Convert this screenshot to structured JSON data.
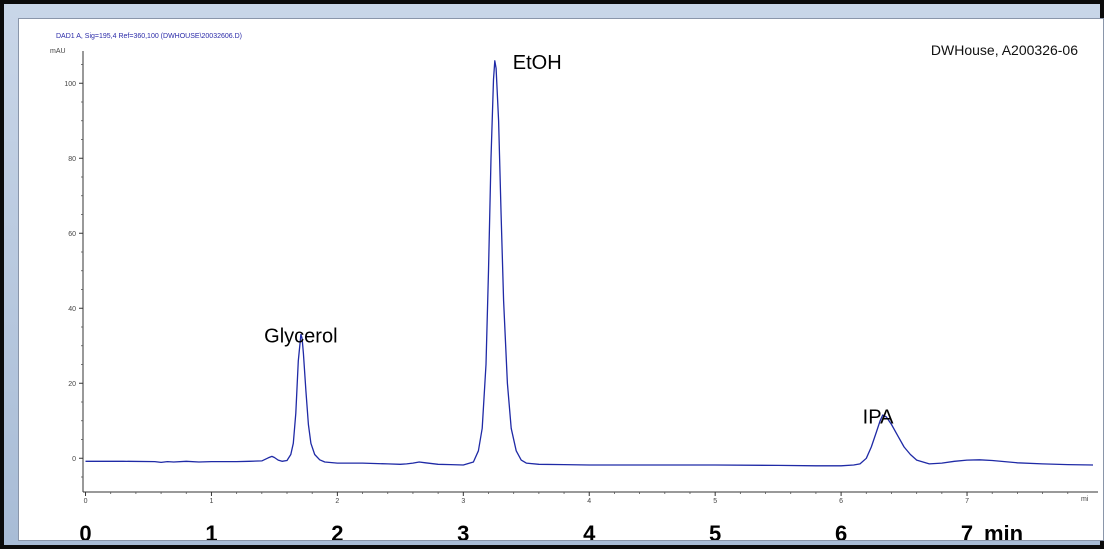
{
  "header": {
    "signal": "DAD1 A, Sig=195,4 Ref=360,100 (DWHOUSE\\20032606.D)",
    "sample_id": "DWHouse, A200326-06"
  },
  "chart_data": {
    "type": "line",
    "title": "",
    "ylabel": "mAU",
    "xlabel": "min",
    "x_unit_small": "mi",
    "xlim": [
      -0.02,
      8.04
    ],
    "ylim": [
      -9,
      107
    ],
    "grid": false,
    "x_ticks": [
      0,
      1,
      2,
      3,
      4,
      5,
      6,
      7
    ],
    "x_ticks_large": [
      "0",
      "1",
      "2",
      "3",
      "4",
      "5",
      "6",
      "7"
    ],
    "x_tick_unit_large": "min",
    "y_ticks": [
      0,
      20,
      40,
      60,
      80,
      100
    ],
    "annotations": [
      {
        "text": "Glycerol",
        "x": 1.71,
        "y": 33
      },
      {
        "text": "EtOH",
        "x": 3.25,
        "y": 106
      },
      {
        "text": "IPA",
        "x": 6.33,
        "y": 12
      }
    ],
    "series": [
      {
        "color": "#1f2aa6",
        "x": [
          0.0,
          0.3,
          0.55,
          0.6,
          0.65,
          0.7,
          0.8,
          0.9,
          1.0,
          1.1,
          1.2,
          1.3,
          1.4,
          1.45,
          1.48,
          1.5,
          1.53,
          1.56,
          1.6,
          1.63,
          1.65,
          1.67,
          1.69,
          1.71,
          1.72,
          1.73,
          1.75,
          1.77,
          1.79,
          1.82,
          1.86,
          1.9,
          2.0,
          2.2,
          2.4,
          2.5,
          2.55,
          2.6,
          2.65,
          2.7,
          2.8,
          2.9,
          3.0,
          3.08,
          3.12,
          3.15,
          3.18,
          3.2,
          3.22,
          3.24,
          3.25,
          3.26,
          3.28,
          3.3,
          3.32,
          3.35,
          3.38,
          3.42,
          3.46,
          3.5,
          3.6,
          3.8,
          4.0,
          4.5,
          5.0,
          5.5,
          5.8,
          6.0,
          6.1,
          6.15,
          6.2,
          6.24,
          6.28,
          6.31,
          6.33,
          6.36,
          6.4,
          6.45,
          6.5,
          6.55,
          6.6,
          6.65,
          6.7,
          6.8,
          6.9,
          7.0,
          7.1,
          7.2,
          7.4,
          7.6,
          7.8,
          8.0
        ],
        "y": [
          -0.8,
          -0.8,
          -0.9,
          -1.1,
          -0.9,
          -1.0,
          -0.8,
          -1.0,
          -0.9,
          -0.9,
          -0.9,
          -0.8,
          -0.7,
          0.1,
          0.5,
          0.2,
          -0.5,
          -0.8,
          -0.6,
          1.0,
          4.0,
          12.0,
          26.0,
          33.0,
          32.0,
          28.0,
          18.0,
          9.0,
          4.0,
          1.0,
          -0.4,
          -1.0,
          -1.3,
          -1.3,
          -1.5,
          -1.6,
          -1.5,
          -1.3,
          -1.0,
          -1.2,
          -1.6,
          -1.7,
          -1.8,
          -1.0,
          2.0,
          8.0,
          25.0,
          50.0,
          80.0,
          101.0,
          106.0,
          104.0,
          90.0,
          65.0,
          42.0,
          20.0,
          8.0,
          2.0,
          -0.5,
          -1.3,
          -1.6,
          -1.7,
          -1.8,
          -1.8,
          -1.8,
          -1.9,
          -2.0,
          -2.0,
          -1.8,
          -1.5,
          0.0,
          3.0,
          7.0,
          10.0,
          11.5,
          11.0,
          9.0,
          6.0,
          3.0,
          1.0,
          -0.5,
          -1.0,
          -1.5,
          -1.3,
          -0.8,
          -0.5,
          -0.4,
          -0.6,
          -1.2,
          -1.5,
          -1.7,
          -1.8
        ]
      }
    ]
  }
}
